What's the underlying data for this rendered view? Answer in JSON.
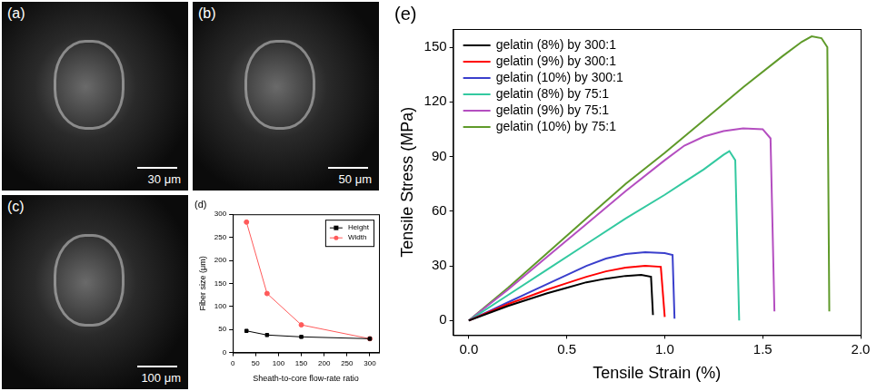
{
  "images": [
    {
      "label": "(a)",
      "scale_bar": "30 μm"
    },
    {
      "label": "(b)",
      "scale_bar": "50 μm"
    },
    {
      "label": "(c)",
      "scale_bar": "100 μm"
    }
  ],
  "chart_data": [
    {
      "type": "line",
      "title": "(d)",
      "x_label": "Sheath-to-core flow-rate ratio",
      "y_label": "Fiber size (μm)",
      "x": [
        30,
        75,
        150,
        300
      ],
      "series": [
        {
          "name": "Height",
          "color": "#000000",
          "marker": "square",
          "values": [
            47,
            38,
            34,
            30
          ]
        },
        {
          "name": "Width",
          "color": "#ff5a5a",
          "marker": "circle",
          "values": [
            283,
            128,
            60,
            30
          ]
        }
      ],
      "xlim": [
        0,
        320
      ],
      "xticks": [
        0,
        50,
        100,
        150,
        200,
        250,
        300
      ],
      "ylim": [
        0,
        300
      ],
      "yticks": [
        0,
        50,
        100,
        150,
        200,
        250,
        300
      ],
      "grid": false,
      "legend": "upper right"
    },
    {
      "type": "line",
      "title": "(e)",
      "x_label": "Tensile Strain (%)",
      "y_label": "Tensile Stress (MPa)",
      "series": [
        {
          "name": "gelatin (8%) by 300:1",
          "color": "#000000",
          "marker": "none",
          "x": [
            0,
            0.1,
            0.2,
            0.3,
            0.4,
            0.5,
            0.6,
            0.7,
            0.8,
            0.88,
            0.93,
            0.94
          ],
          "values": [
            0,
            4,
            8,
            11.5,
            15,
            18,
            21,
            23,
            24.5,
            25,
            24,
            3
          ]
        },
        {
          "name": "gelatin (9%) by 300:1",
          "color": "#ff0000",
          "marker": "none",
          "x": [
            0,
            0.1,
            0.2,
            0.3,
            0.4,
            0.5,
            0.6,
            0.7,
            0.8,
            0.9,
            0.98,
            1.0
          ],
          "values": [
            0,
            4.5,
            9,
            13,
            17,
            20.5,
            24,
            27,
            29,
            30,
            29.5,
            2
          ]
        },
        {
          "name": "gelatin (10%) by 300:1",
          "color": "#3a3fcc",
          "marker": "none",
          "x": [
            0,
            0.1,
            0.2,
            0.3,
            0.4,
            0.5,
            0.6,
            0.7,
            0.8,
            0.9,
            1.0,
            1.04,
            1.05
          ],
          "values": [
            0,
            5,
            10,
            15,
            20,
            25,
            30,
            34,
            36.5,
            37.5,
            37,
            36,
            1
          ]
        },
        {
          "name": "gelatin (8%) by 75:1",
          "color": "#33c9a0",
          "marker": "none",
          "x": [
            0,
            0.2,
            0.4,
            0.6,
            0.8,
            1.0,
            1.1,
            1.2,
            1.3,
            1.33,
            1.36,
            1.38
          ],
          "values": [
            0,
            14,
            28,
            42,
            56,
            69,
            76,
            83,
            91,
            93,
            88,
            0
          ]
        },
        {
          "name": "gelatin (9%) by 75:1",
          "color": "#b44ec0",
          "marker": "none",
          "x": [
            0,
            0.2,
            0.4,
            0.6,
            0.8,
            1.0,
            1.1,
            1.2,
            1.3,
            1.4,
            1.5,
            1.54,
            1.56
          ],
          "values": [
            0,
            17,
            35,
            53,
            71,
            88,
            96,
            101,
            104,
            105.5,
            105,
            100,
            5
          ]
        },
        {
          "name": "gelatin (10%) by 75:1",
          "color": "#5f9a2a",
          "marker": "none",
          "x": [
            0,
            0.2,
            0.4,
            0.6,
            0.8,
            1.0,
            1.2,
            1.4,
            1.6,
            1.7,
            1.75,
            1.8,
            1.83,
            1.84
          ],
          "values": [
            0,
            18,
            37,
            56,
            75,
            92,
            110,
            128,
            145,
            153,
            156,
            155,
            150,
            5
          ]
        }
      ],
      "xlim": [
        -0.08,
        2.0
      ],
      "xticks": [
        {
          "value": 0,
          "label": "0.0"
        },
        {
          "value": 0.5,
          "label": "0.5"
        },
        {
          "value": 1,
          "label": "1.0"
        },
        {
          "value": 1.5,
          "label": "1.5"
        },
        {
          "value": 2,
          "label": "2.0"
        }
      ],
      "ylim": [
        -8,
        160
      ],
      "yticks": [
        0,
        30,
        60,
        90,
        120,
        150
      ],
      "grid": false,
      "legend": "upper left"
    }
  ]
}
